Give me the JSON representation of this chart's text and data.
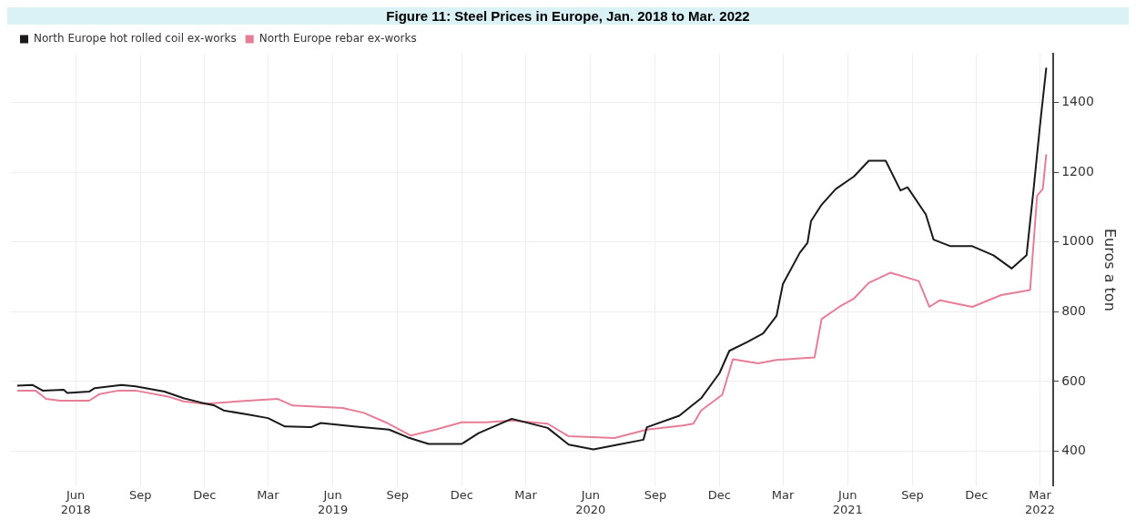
{
  "chart_data": {
    "type": "line",
    "title": "Figure 11: Steel Prices in Europe, Jan. 2018 to Mar. 2022",
    "ylabel": "Euros a ton",
    "xlim": [
      "2018-03-01",
      "2022-03-20"
    ],
    "xticks": [
      {
        "value": "2018-06-01",
        "label": "Jun\n2018"
      },
      {
        "value": "2018-09-01",
        "label": "Sep"
      },
      {
        "value": "2018-12-01",
        "label": "Dec"
      },
      {
        "value": "2019-03-01",
        "label": "Mar"
      },
      {
        "value": "2019-06-01",
        "label": "Jun\n2019"
      },
      {
        "value": "2019-09-01",
        "label": "Sep"
      },
      {
        "value": "2019-12-01",
        "label": "Dec"
      },
      {
        "value": "2020-03-01",
        "label": "Mar"
      },
      {
        "value": "2020-06-01",
        "label": "Jun\n2020"
      },
      {
        "value": "2020-09-01",
        "label": "Sep"
      },
      {
        "value": "2020-12-01",
        "label": "Dec"
      },
      {
        "value": "2021-03-01",
        "label": "Mar"
      },
      {
        "value": "2021-06-01",
        "label": "Jun\n2021"
      },
      {
        "value": "2021-09-01",
        "label": "Sep"
      },
      {
        "value": "2021-12-01",
        "label": "Dec"
      },
      {
        "value": "2022-03-01",
        "label": "Mar\n2022"
      }
    ],
    "ylim": [
      300,
      1540
    ],
    "yticks": [
      400,
      600,
      800,
      1000,
      1200,
      1400
    ],
    "grid": true,
    "legend": "top left",
    "marker": "none",
    "line_style": "solid",
    "series": [
      {
        "name": "North Europe hot rolled coil ex-works",
        "color": "#1a1a1a",
        "x": [
          "2018-03-10",
          "2018-04-01",
          "2018-04-15",
          "2018-05-15",
          "2018-05-20",
          "2018-06-20",
          "2018-06-28",
          "2018-08-05",
          "2018-08-25",
          "2018-10-05",
          "2018-11-01",
          "2018-11-25",
          "2018-12-15",
          "2018-12-28",
          "2019-02-01",
          "2019-03-01",
          "2019-03-25",
          "2019-05-01",
          "2019-05-15",
          "2019-07-01",
          "2019-08-20",
          "2019-09-15",
          "2019-10-15",
          "2019-12-01",
          "2019-12-25",
          "2020-02-10",
          "2020-04-01",
          "2020-05-01",
          "2020-06-05",
          "2020-07-05",
          "2020-08-15",
          "2020-08-20",
          "2020-10-05",
          "2020-11-05",
          "2020-12-01",
          "2020-12-15",
          "2021-01-10",
          "2021-02-01",
          "2021-02-20",
          "2021-03-01",
          "2021-03-25",
          "2021-04-05",
          "2021-04-10",
          "2021-04-25",
          "2021-05-15",
          "2021-06-10",
          "2021-07-01",
          "2021-07-25",
          "2021-08-15",
          "2021-08-25",
          "2021-09-20",
          "2021-10-01",
          "2021-10-25",
          "2021-11-25",
          "2021-12-25",
          "2022-01-20",
          "2022-02-10",
          "2022-02-20",
          "2022-03-01",
          "2022-03-10"
        ],
        "values": [
          588,
          590,
          574,
          576,
          567,
          571,
          581,
          590,
          586,
          571,
          552,
          540,
          531,
          517,
          505,
          495,
          471,
          469,
          481,
          471,
          462,
          440,
          421,
          421,
          452,
          493,
          467,
          419,
          405,
          417,
          433,
          469,
          502,
          552,
          624,
          688,
          714,
          738,
          788,
          879,
          969,
          998,
          1060,
          1107,
          1152,
          1188,
          1233,
          1233,
          1148,
          1157,
          1079,
          1007,
          988,
          988,
          962,
          924,
          962,
          1152,
          1333,
          1500
        ]
      },
      {
        "name": "North Europe rebar ex-works",
        "color": "#e67e98",
        "x": [
          "2018-03-10",
          "2018-04-05",
          "2018-04-20",
          "2018-05-10",
          "2018-06-20",
          "2018-07-05",
          "2018-08-01",
          "2018-08-25",
          "2018-10-10",
          "2018-11-01",
          "2018-12-01",
          "2019-02-01",
          "2019-03-15",
          "2019-04-05",
          "2019-06-15",
          "2019-07-15",
          "2019-08-15",
          "2019-09-20",
          "2019-10-25",
          "2019-12-01",
          "2020-01-05",
          "2020-02-10",
          "2020-04-01",
          "2020-05-01",
          "2020-07-05",
          "2020-08-20",
          "2020-10-10",
          "2020-10-25",
          "2020-11-05",
          "2020-12-05",
          "2020-12-20",
          "2021-01-25",
          "2021-02-20",
          "2021-04-15",
          "2021-04-25",
          "2021-05-20",
          "2021-06-10",
          "2021-07-01",
          "2021-08-01",
          "2021-09-10",
          "2021-09-25",
          "2021-10-10",
          "2021-11-25",
          "2022-01-05",
          "2022-02-15",
          "2022-02-25",
          "2022-03-05",
          "2022-03-10"
        ],
        "values": [
          574,
          574,
          550,
          545,
          545,
          564,
          574,
          574,
          557,
          543,
          536,
          545,
          550,
          531,
          524,
          510,
          483,
          445,
          462,
          483,
          483,
          488,
          479,
          443,
          438,
          462,
          474,
          479,
          517,
          562,
          664,
          652,
          662,
          669,
          779,
          814,
          838,
          883,
          912,
          888,
          814,
          833,
          814,
          848,
          862,
          1133,
          1152,
          1252
        ]
      }
    ]
  }
}
